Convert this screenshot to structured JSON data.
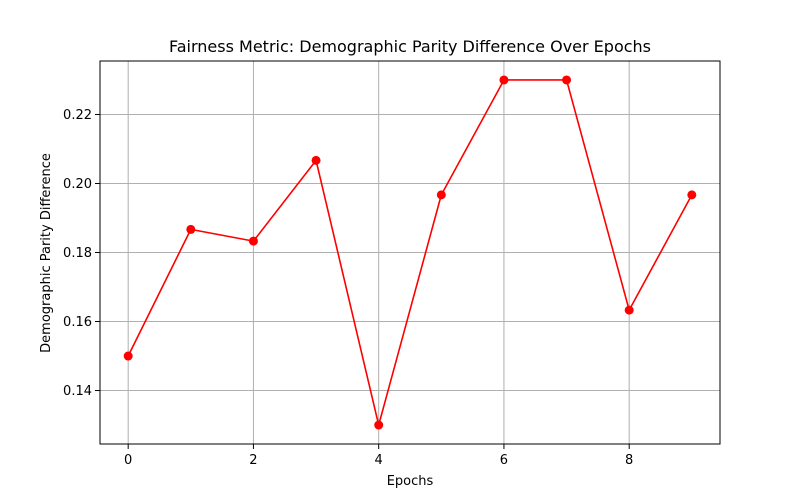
{
  "chart_data": {
    "type": "line",
    "title": "Fairness Metric: Demographic Parity Difference Over Epochs",
    "xlabel": "Epochs",
    "ylabel": "Demographic Parity Difference",
    "x": [
      0,
      1,
      2,
      3,
      4,
      5,
      6,
      7,
      8,
      9
    ],
    "series": [
      {
        "values": [
          0.15,
          0.1867,
          0.1833,
          0.2067,
          0.13,
          0.1967,
          0.23,
          0.23,
          0.1633,
          0.1967
        ],
        "color": "#ff0000",
        "marker": "circle"
      }
    ],
    "xlim": [
      -0.45,
      9.45
    ],
    "ylim": [
      0.1245,
      0.2355
    ],
    "xticks": [
      0,
      2,
      4,
      6,
      8
    ],
    "xtick_labels": [
      "0",
      "2",
      "4",
      "6",
      "8"
    ],
    "yticks": [
      0.14,
      0.16,
      0.18,
      0.2,
      0.22
    ],
    "ytick_labels": [
      "0.14",
      "0.16",
      "0.18",
      "0.20",
      "0.22"
    ],
    "grid": true,
    "legend": false
  }
}
